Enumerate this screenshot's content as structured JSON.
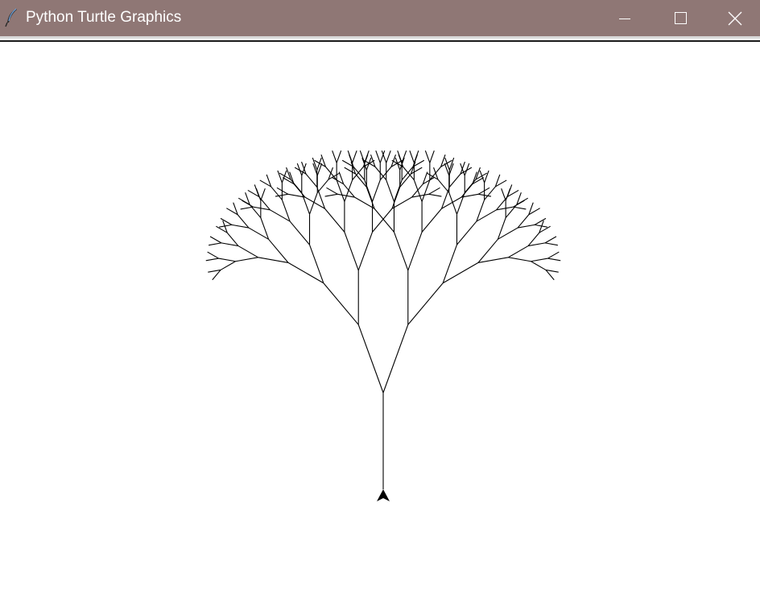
{
  "window": {
    "title": "Python Turtle Graphics",
    "app_icon": "feather-icon",
    "titlebar_color": "#8f7775",
    "controls": [
      {
        "name": "minimize",
        "icon": "minimize-icon"
      },
      {
        "name": "maximize",
        "icon": "maximize-icon"
      },
      {
        "name": "close",
        "icon": "close-icon"
      }
    ]
  },
  "canvas": {
    "background": "#ffffff",
    "pen_color": "#000000",
    "drawing": "fractal-tree",
    "tree": {
      "depth": 7,
      "trunk_length": 120,
      "branch_angle_deg": 20,
      "length_factor": 0.75
    },
    "turtle": {
      "shape": "classic-arrow",
      "heading": "up"
    }
  }
}
